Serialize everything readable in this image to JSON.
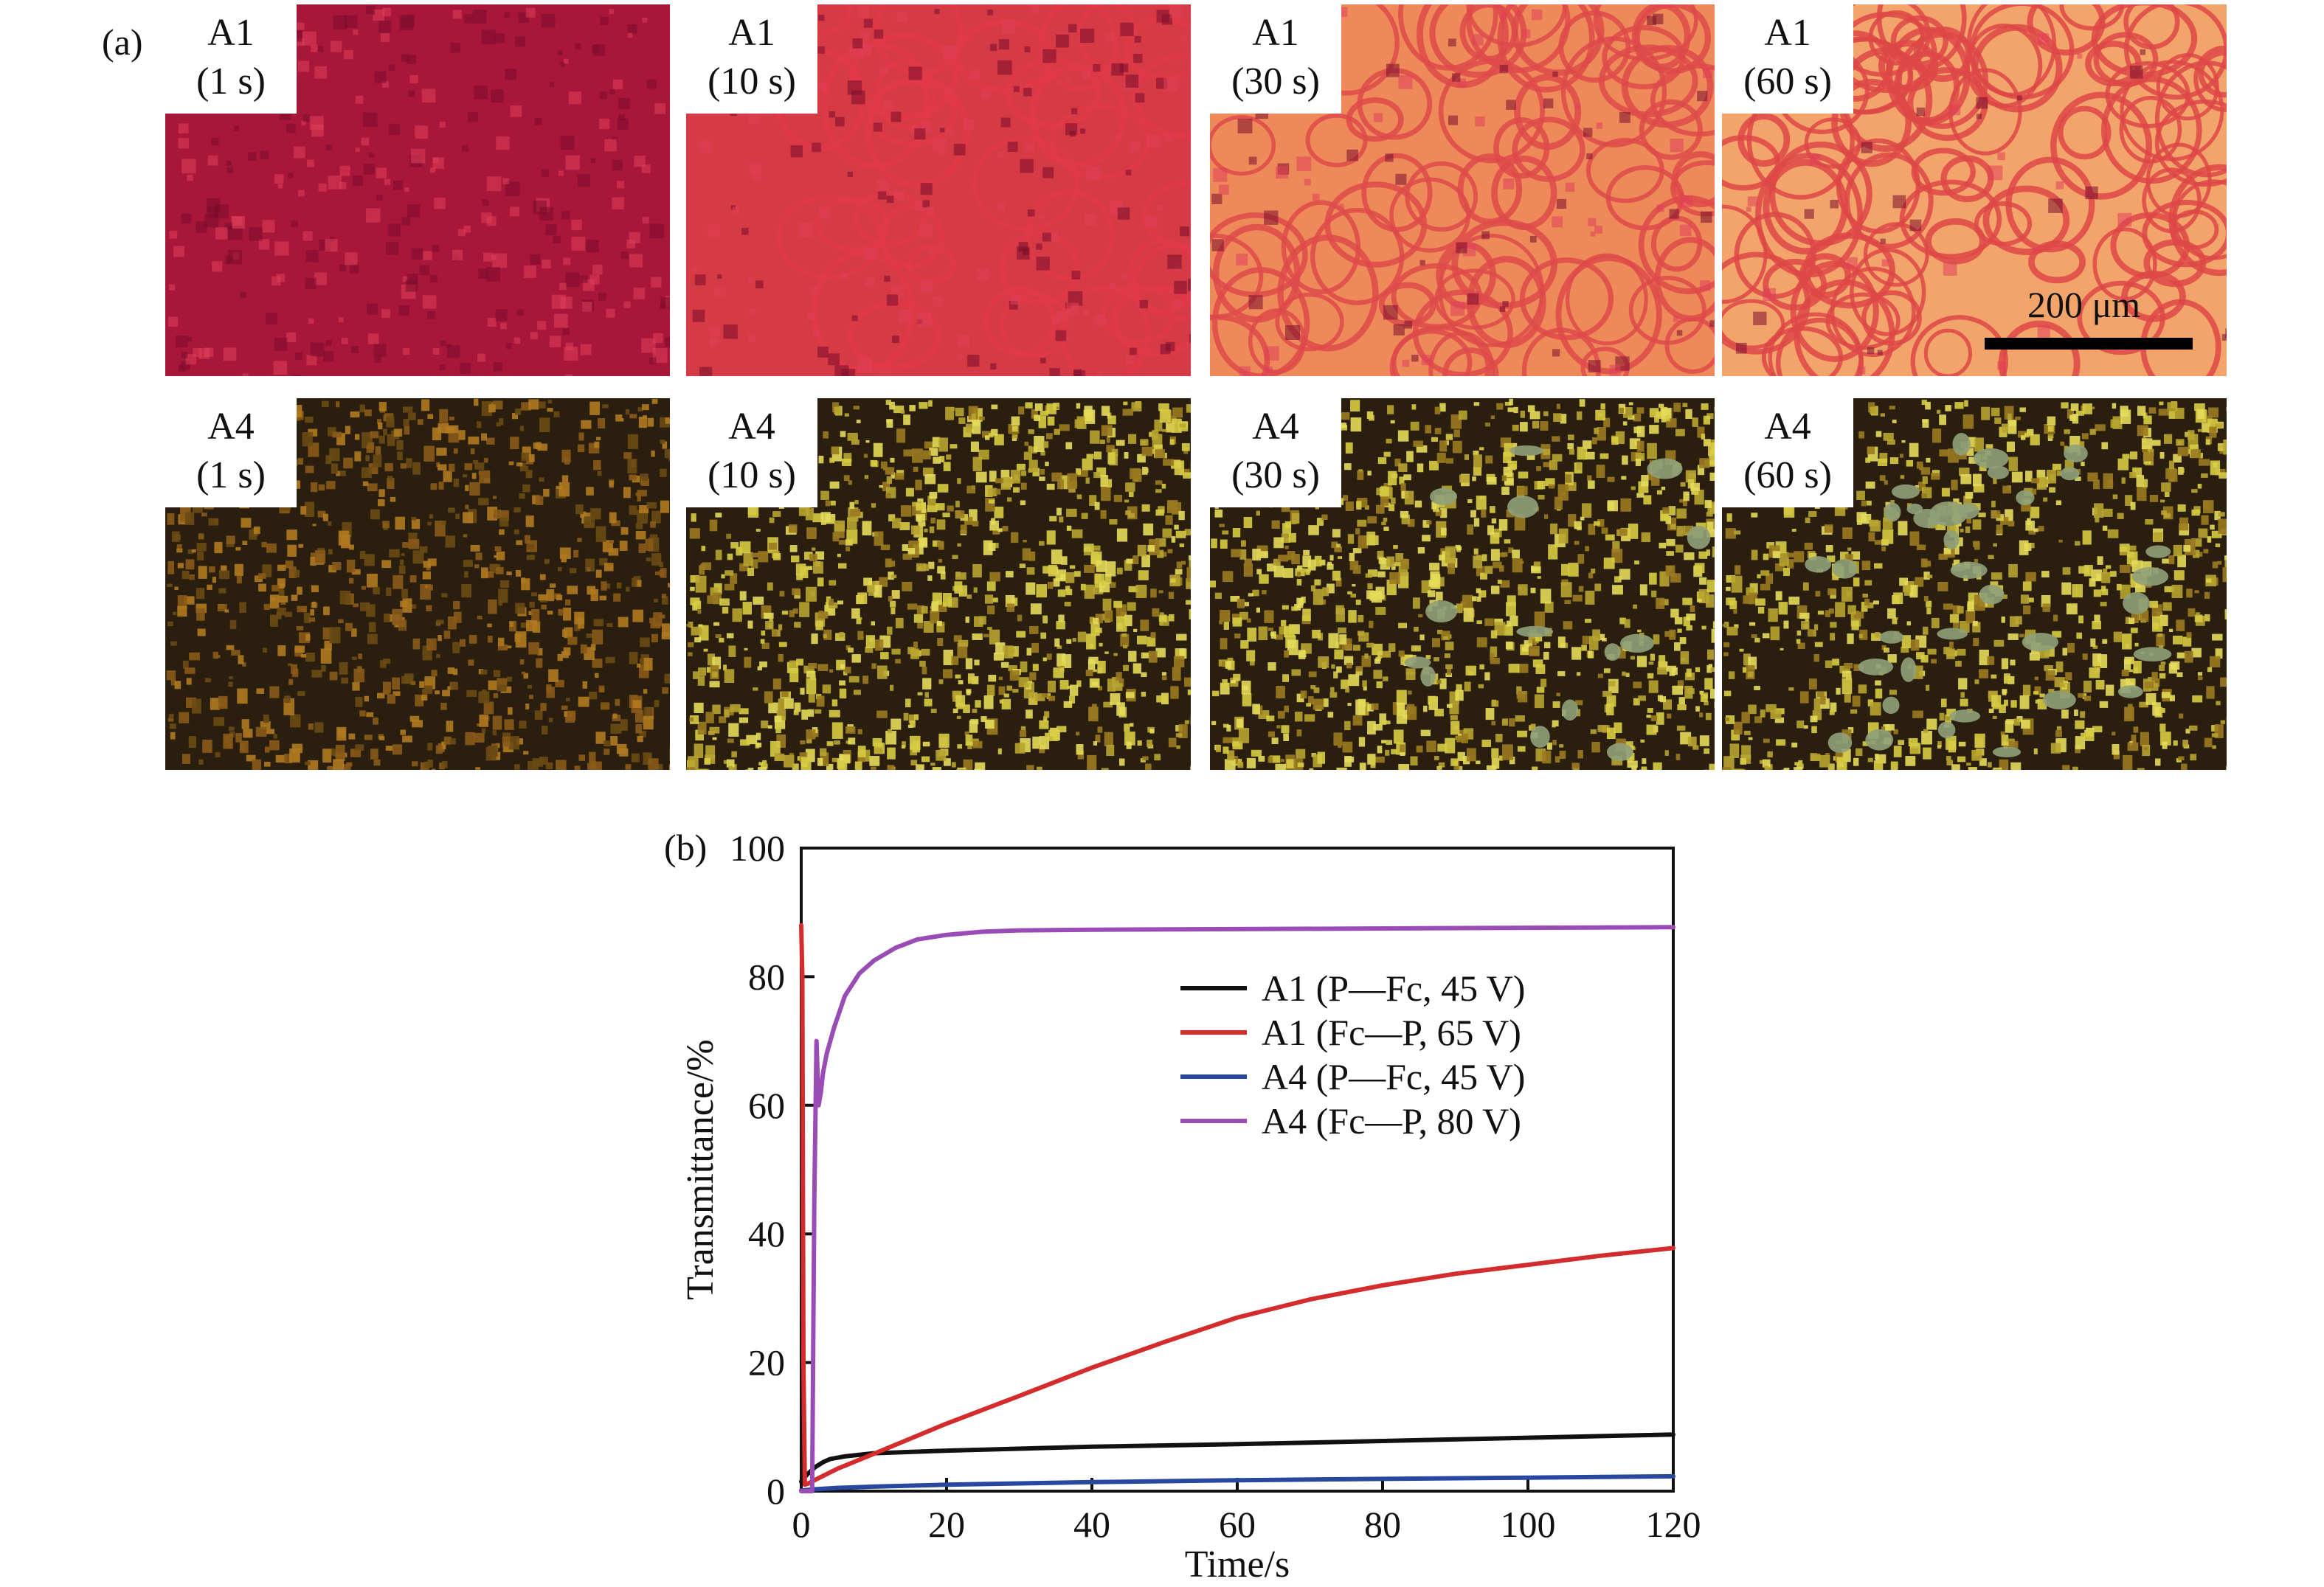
{
  "panel_a": {
    "letter": "(a)",
    "scale_bar_label": "200 μm",
    "rows": [
      {
        "sample": "A1",
        "tiles": [
          {
            "sample": "A1",
            "time": "(1 s)"
          },
          {
            "sample": "A1",
            "time": "(10 s)"
          },
          {
            "sample": "A1",
            "time": "(30 s)"
          },
          {
            "sample": "A1",
            "time": "(60 s)"
          }
        ]
      },
      {
        "sample": "A4",
        "tiles": [
          {
            "sample": "A4",
            "time": "(1 s)"
          },
          {
            "sample": "A4",
            "time": "(10 s)"
          },
          {
            "sample": "A4",
            "time": "(30 s)"
          },
          {
            "sample": "A4",
            "time": "(60 s)"
          }
        ]
      }
    ],
    "colors": {
      "a1_dark": "#b01a3c",
      "a1_cell": "#f0a062",
      "a1_network": "#e05050",
      "a4_dark": "#2a1e0e",
      "a4_speck": "#d8cc44",
      "a4_domain": "#8fa07a"
    }
  },
  "chart_data": {
    "type": "line",
    "panel_label": "(b)",
    "xlabel": "Time/s",
    "ylabel": "Transmittance/%",
    "xlim": [
      0,
      120
    ],
    "ylim": [
      0,
      100
    ],
    "xticks": [
      0,
      20,
      40,
      60,
      80,
      100,
      120
    ],
    "yticks": [
      0,
      20,
      40,
      60,
      80,
      100
    ],
    "legend_position": "upper-right",
    "series": [
      {
        "name": "A1 (P—Fc, 45 V)",
        "color": "#111111",
        "x": [
          0,
          0.5,
          1,
          2,
          3,
          4,
          6,
          10,
          20,
          40,
          60,
          80,
          100,
          120
        ],
        "y": [
          1.5,
          2.2,
          2.8,
          3.8,
          4.5,
          5.0,
          5.4,
          5.9,
          6.3,
          6.9,
          7.3,
          7.8,
          8.3,
          8.8
        ]
      },
      {
        "name": "A1 (Fc—P, 65 V)",
        "color": "#d42c2c",
        "x": [
          0,
          0.15,
          0.3,
          0.5,
          1,
          2,
          5,
          10,
          20,
          30,
          40,
          50,
          60,
          70,
          80,
          90,
          100,
          110,
          120
        ],
        "y": [
          88,
          80,
          20,
          1.0,
          1.2,
          1.8,
          3.5,
          5.8,
          10.5,
          14.8,
          19.2,
          23.2,
          27.0,
          29.8,
          32.0,
          33.8,
          35.2,
          36.6,
          37.8
        ]
      },
      {
        "name": "A4 (P—Fc, 45 V)",
        "color": "#2848a0",
        "x": [
          0,
          2,
          5,
          10,
          20,
          40,
          60,
          80,
          100,
          120
        ],
        "y": [
          0.1,
          0.3,
          0.5,
          0.7,
          1.0,
          1.4,
          1.7,
          1.9,
          2.1,
          2.3
        ]
      },
      {
        "name": "A4 (Fc—P, 80 V)",
        "color": "#9a4cb6",
        "x": [
          0,
          1.5,
          1.8,
          2.1,
          2.4,
          2.7,
          3.0,
          3.5,
          4.5,
          6,
          8,
          10,
          13,
          16,
          20,
          25,
          30,
          40,
          60,
          80,
          100,
          120
        ],
        "y": [
          0,
          0,
          45,
          70,
          60,
          62,
          65,
          68,
          72,
          77,
          80.5,
          82.5,
          84.5,
          85.8,
          86.5,
          87.0,
          87.2,
          87.3,
          87.4,
          87.5,
          87.6,
          87.7
        ]
      }
    ]
  }
}
